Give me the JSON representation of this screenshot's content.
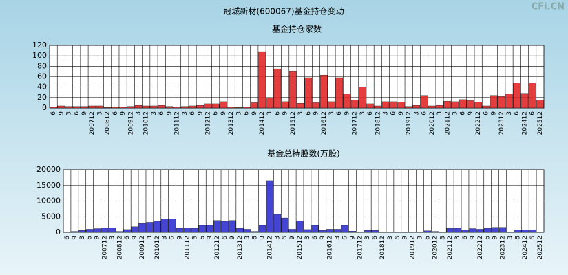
{
  "title": "冠城新材(600067)基金持仓变动",
  "watermark": "CFi.CN",
  "chart_data": [
    {
      "type": "bar",
      "title": "基金持仓家数",
      "color": "#e02828",
      "categories": [
        "6",
        "9",
        "3",
        "6",
        "9",
        "200712",
        "3",
        "200812",
        "6",
        "9",
        "200912",
        "3",
        "201012",
        "3",
        "6",
        "9",
        "201112",
        "3",
        "6",
        "9",
        "201212",
        "6",
        "9",
        "201312",
        "3",
        "6",
        "9",
        "201412",
        "3",
        "6",
        "9",
        "201512",
        "3",
        "6",
        "9",
        "201612",
        "3",
        "6",
        "9",
        "201712",
        "3",
        "6",
        "201812",
        "3",
        "6",
        "9",
        "201912",
        "3",
        "6",
        "202012",
        "3",
        "202112",
        "3",
        "6",
        "9",
        "202212",
        "6",
        "9",
        "202312",
        "3",
        "6",
        "202412",
        "6",
        "202512"
      ],
      "values": [
        2,
        4,
        3,
        3,
        3,
        4,
        4,
        1,
        2,
        2,
        3,
        5,
        4,
        4,
        5,
        3,
        2,
        3,
        4,
        5,
        8,
        8,
        12,
        2,
        1,
        2,
        10,
        108,
        20,
        75,
        12,
        71,
        9,
        58,
        10,
        63,
        12,
        58,
        27,
        15,
        40,
        8,
        4,
        12,
        12,
        11,
        3,
        5,
        24,
        4,
        5,
        13,
        12,
        16,
        14,
        11,
        4,
        24,
        22,
        27,
        48,
        28,
        48,
        15
      ],
      "ylim": [
        0,
        120
      ],
      "yticks": [
        0,
        20,
        40,
        60,
        80,
        100,
        120
      ],
      "grid": true
    },
    {
      "type": "bar",
      "title": "基金总持股数(万股)",
      "color": "#3030d0",
      "categories": [
        "6",
        "9",
        "3",
        "6",
        "9",
        "200712",
        "3",
        "200812",
        "6",
        "9",
        "200912",
        "3",
        "201012",
        "3",
        "6",
        "9",
        "201112",
        "3",
        "6",
        "9",
        "201212",
        "6",
        "9",
        "201312",
        "3",
        "6",
        "9",
        "201412",
        "3",
        "6",
        "9",
        "201512",
        "3",
        "6",
        "9",
        "201612",
        "3",
        "6",
        "9",
        "201712",
        "3",
        "6",
        "201812",
        "3",
        "6",
        "9",
        "201912",
        "3",
        "6",
        "202012",
        "3",
        "202112",
        "3",
        "6",
        "9",
        "202212",
        "6",
        "9",
        "202312",
        "3",
        "6",
        "202412",
        "6",
        "202512"
      ],
      "values": [
        50,
        300,
        600,
        1000,
        1200,
        1400,
        1400,
        300,
        900,
        1800,
        2800,
        3200,
        3500,
        4300,
        4300,
        1300,
        1400,
        1300,
        2200,
        2200,
        3800,
        3500,
        3800,
        1300,
        1000,
        300,
        2200,
        16500,
        5700,
        4600,
        1000,
        3600,
        900,
        2200,
        600,
        1000,
        1000,
        2200,
        400,
        100,
        600,
        600,
        100,
        100,
        100,
        100,
        100,
        100,
        500,
        300,
        100,
        1300,
        1300,
        800,
        1200,
        1000,
        1300,
        1600,
        1600,
        100,
        800,
        800,
        800,
        100
      ],
      "ylim": [
        0,
        20000
      ],
      "yticks": [
        0,
        5000,
        10000,
        15000,
        20000
      ],
      "grid": true
    }
  ]
}
